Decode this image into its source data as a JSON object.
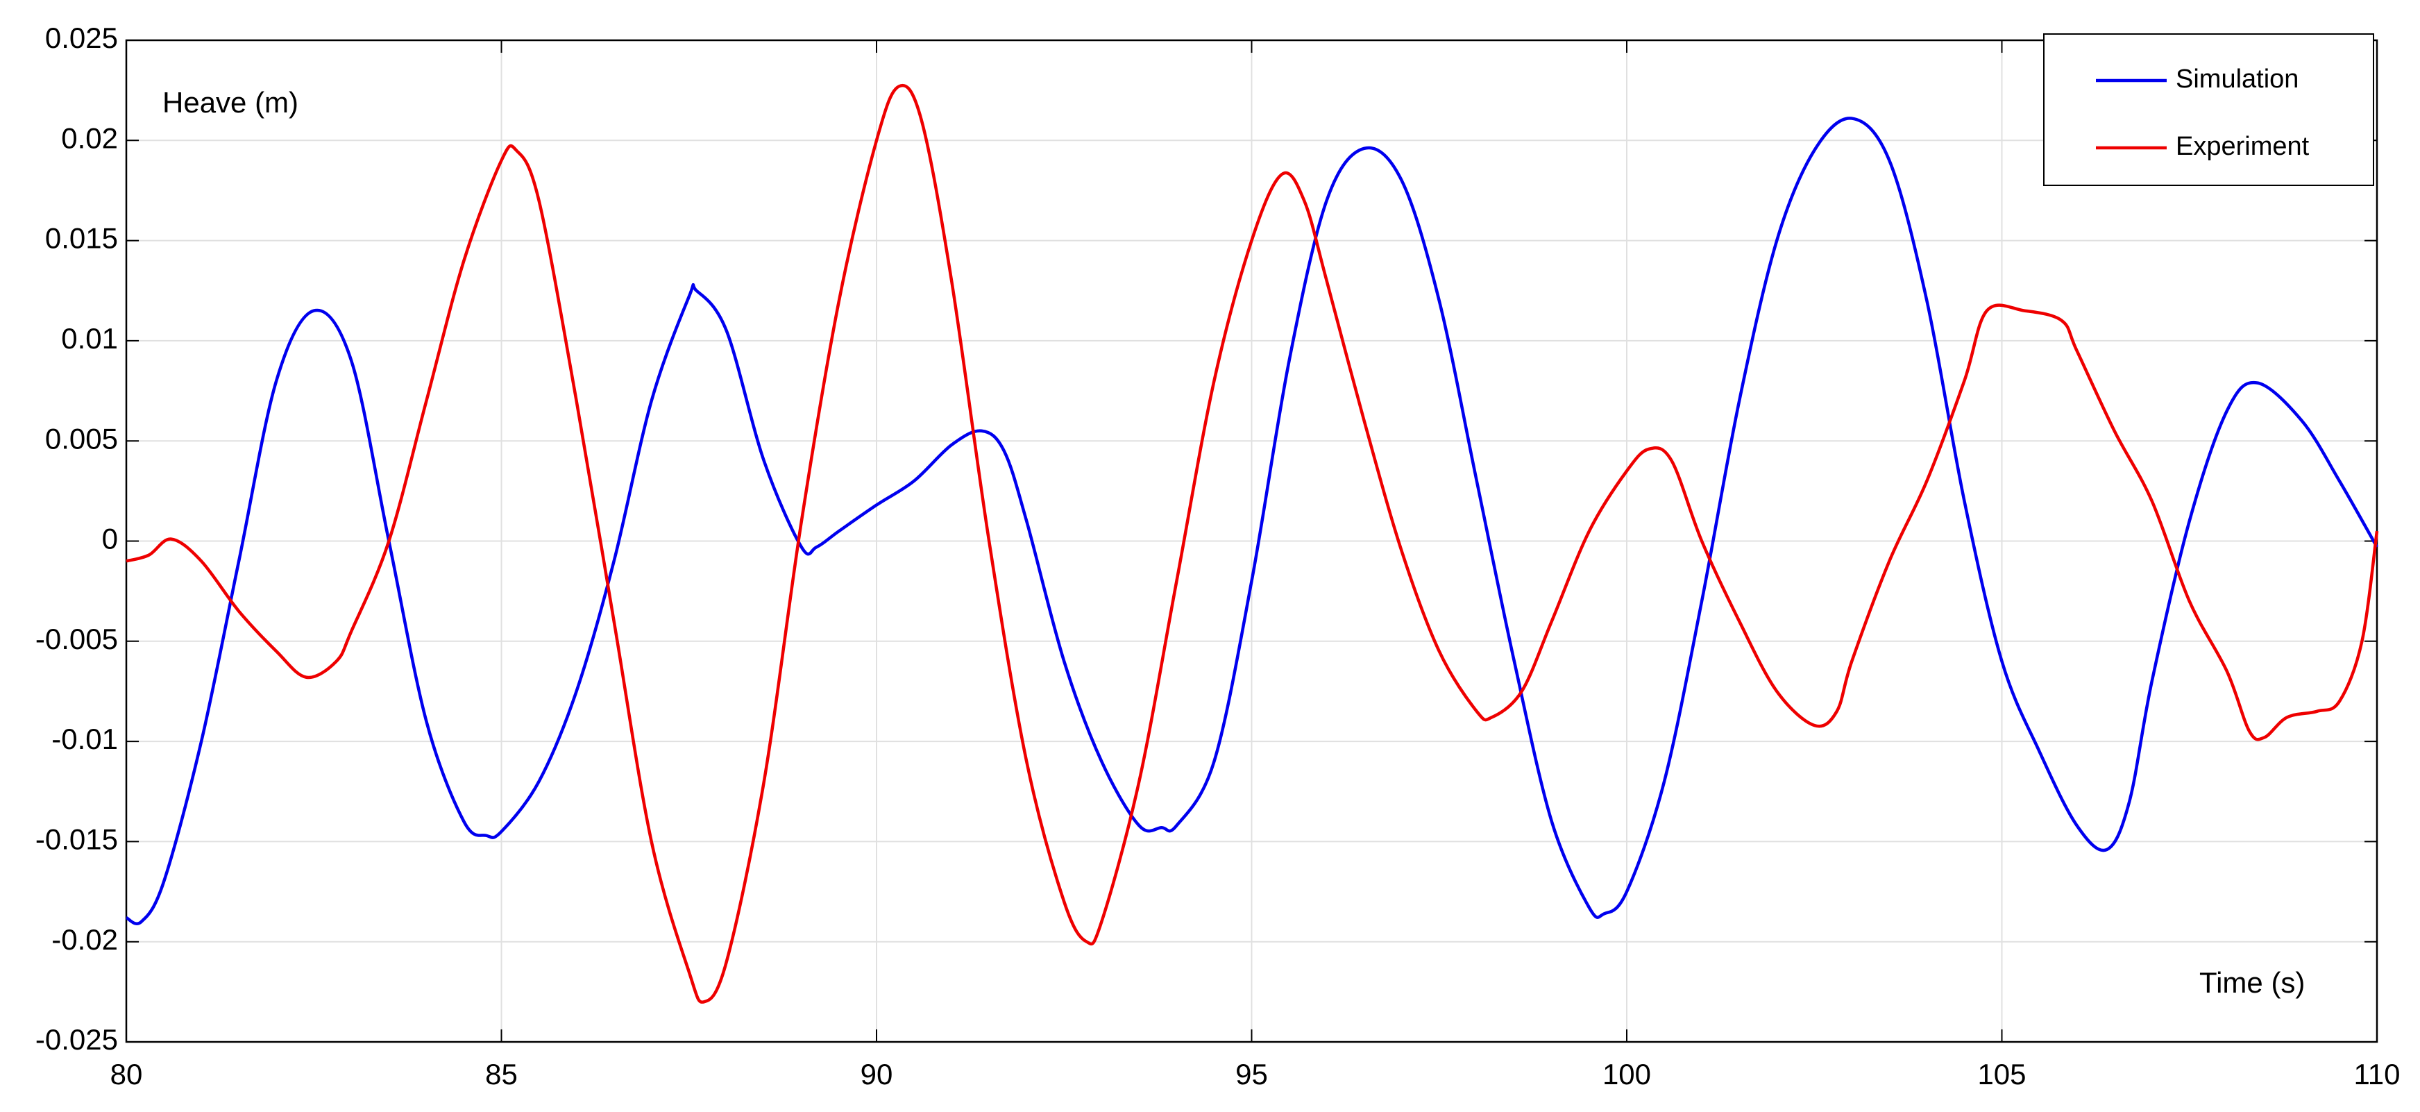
{
  "chart_data": {
    "type": "line",
    "y_label": "Heave (m)",
    "x_label": "Time (s)",
    "xlim": [
      80,
      110
    ],
    "xticks": [
      80,
      85,
      90,
      95,
      100,
      105,
      110
    ],
    "ylim": [
      -0.025,
      0.025
    ],
    "yticks": [
      0.025,
      0.02,
      0.015,
      0.01,
      0.005,
      0,
      -0.005,
      -0.01,
      -0.015,
      -0.02,
      -0.025
    ],
    "grid": true,
    "legend": "upper right",
    "series": [
      {
        "name": "Simulation",
        "color": "#0000ee",
        "x": [
          80,
          80.2,
          80.5,
          81,
          81.5,
          82,
          82.5,
          83,
          83.5,
          84,
          84.5,
          84.8,
          85,
          85.5,
          86,
          86.5,
          87,
          87.5,
          87.6,
          88,
          88.5,
          89,
          89.2,
          89.5,
          90,
          90.5,
          91,
          91.4,
          91.7,
          92,
          92.5,
          93,
          93.5,
          93.8,
          94,
          94.5,
          95,
          95.5,
          96,
          96.5,
          97,
          97.5,
          98,
          98.5,
          99,
          99.5,
          99.7,
          100,
          100.5,
          101,
          101.5,
          102,
          102.5,
          103,
          103.5,
          104,
          104.5,
          105,
          105.5,
          106,
          106.4,
          106.7,
          107,
          107.5,
          108,
          108.4,
          109,
          109.5,
          110
        ],
        "values": [
          -0.0188,
          -0.019,
          -0.017,
          -0.01,
          -0.001,
          0.008,
          0.0115,
          0.009,
          0.0,
          -0.009,
          -0.014,
          -0.0147,
          -0.0145,
          -0.012,
          -0.0075,
          -0.001,
          0.007,
          0.0122,
          0.0125,
          0.0105,
          0.004,
          -0.0003,
          -0.0003,
          0.0005,
          0.0018,
          0.003,
          0.0048,
          0.0055,
          0.0045,
          0.001,
          -0.006,
          -0.011,
          -0.0142,
          -0.0143,
          -0.0142,
          -0.011,
          -0.002,
          0.009,
          0.017,
          0.0196,
          0.018,
          0.012,
          0.003,
          -0.006,
          -0.014,
          -0.0183,
          -0.0186,
          -0.0175,
          -0.012,
          -0.003,
          0.007,
          0.015,
          0.0195,
          0.0211,
          0.019,
          0.012,
          0.002,
          -0.006,
          -0.0105,
          -0.0142,
          -0.0154,
          -0.013,
          -0.007,
          0.001,
          0.0065,
          0.0079,
          0.006,
          0.003,
          -0.0003
        ]
      },
      {
        "name": "Experiment",
        "color": "#ee0000",
        "x": [
          80,
          80.3,
          80.6,
          81,
          81.5,
          82,
          82.4,
          82.8,
          83,
          83.5,
          84,
          84.5,
          85,
          85.2,
          85.5,
          86,
          86.5,
          87,
          87.5,
          87.7,
          88,
          88.5,
          89,
          89.5,
          90,
          90.3,
          90.6,
          91,
          91.5,
          92,
          92.5,
          92.8,
          93,
          93.5,
          94,
          94.5,
          95,
          95.4,
          95.7,
          96,
          96.5,
          97,
          97.5,
          98,
          98.2,
          98.6,
          99,
          99.5,
          100,
          100.3,
          100.6,
          101,
          101.5,
          102,
          102.5,
          102.8,
          103,
          103.5,
          104,
          104.5,
          104.8,
          105.3,
          105.8,
          106,
          106.5,
          107,
          107.5,
          108,
          108.3,
          108.5,
          108.8,
          109.2,
          109.5,
          109.8,
          110
        ],
        "values": [
          -0.001,
          -0.0007,
          0.0001,
          -0.001,
          -0.0035,
          -0.0055,
          -0.0068,
          -0.006,
          -0.0045,
          0.0,
          0.007,
          0.014,
          0.019,
          0.0195,
          0.017,
          0.007,
          -0.004,
          -0.015,
          -0.0215,
          -0.023,
          -0.021,
          -0.012,
          0.001,
          0.012,
          0.02,
          0.0227,
          0.021,
          0.013,
          0.0,
          -0.011,
          -0.018,
          -0.02,
          -0.019,
          -0.012,
          -0.002,
          0.008,
          0.015,
          0.0183,
          0.017,
          0.013,
          0.006,
          -0.0005,
          -0.0055,
          -0.0085,
          -0.0088,
          -0.0075,
          -0.004,
          0.0005,
          0.0035,
          0.0046,
          0.004,
          0.0,
          -0.004,
          -0.0075,
          -0.0092,
          -0.0085,
          -0.006,
          -0.001,
          0.003,
          0.008,
          0.0115,
          0.0115,
          0.011,
          0.0095,
          0.0055,
          0.002,
          -0.003,
          -0.0065,
          -0.0095,
          -0.0098,
          -0.0088,
          -0.0085,
          -0.008,
          -0.005,
          0.0005
        ]
      }
    ]
  }
}
